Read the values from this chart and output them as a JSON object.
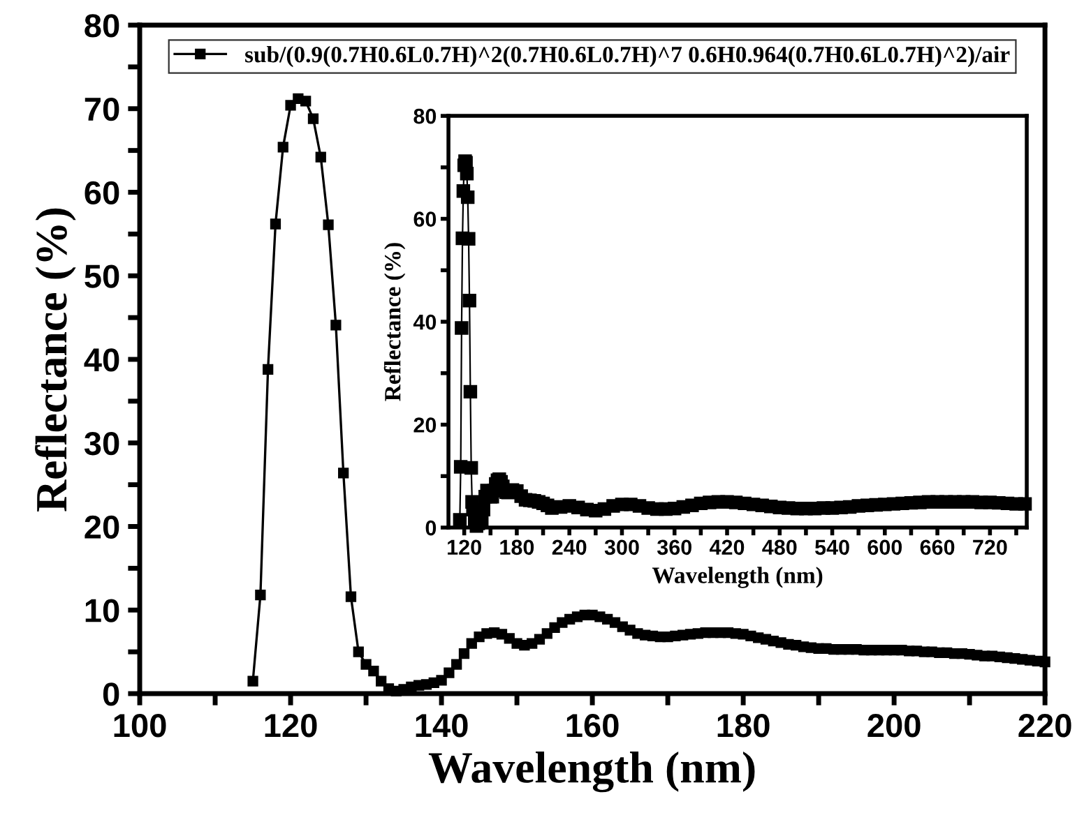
{
  "chart_data": [
    {
      "type": "line",
      "xlabel": "Wavelength (nm)",
      "ylabel": "Reflectance (%)",
      "marker": "square",
      "line_style": "solid",
      "legend": "top",
      "grid": false,
      "xlim": [
        100,
        220
      ],
      "xticks": [
        100,
        {
          "value": 110,
          "label": null
        },
        120,
        {
          "value": 130,
          "label": null
        },
        140,
        {
          "value": 150,
          "label": null
        },
        160,
        {
          "value": 170,
          "label": null
        },
        180,
        {
          "value": 190,
          "label": null
        },
        200,
        {
          "value": 210,
          "label": null
        },
        220
      ],
      "ylim": [
        0,
        80
      ],
      "yticks": [
        0,
        {
          "value": 5,
          "label": null
        },
        10,
        {
          "value": 15,
          "label": null
        },
        20,
        {
          "value": 25,
          "label": null
        },
        30,
        {
          "value": 35,
          "label": null
        },
        40,
        {
          "value": 45,
          "label": null
        },
        50,
        {
          "value": 55,
          "label": null
        },
        60,
        {
          "value": 65,
          "label": null
        },
        70,
        {
          "value": 75,
          "label": null
        },
        80
      ],
      "series": [
        {
          "name": "sub/(0.9(0.7H0.6L0.7H)^2(0.7H0.6L0.7H)^7 0.6H0.964(0.7H0.6L0.7H)^2)/air",
          "color": "#000000",
          "x": [
            115,
            116,
            117,
            118,
            119,
            120,
            121,
            122,
            123,
            124,
            125,
            126,
            127,
            128,
            129,
            130,
            131,
            132,
            133,
            134,
            135,
            136,
            137,
            138,
            139,
            140,
            141,
            142,
            143,
            144,
            145,
            146,
            147,
            148,
            149,
            150,
            151,
            152,
            153,
            154,
            155,
            156,
            157,
            158,
            159,
            160,
            161,
            162,
            163,
            164,
            165,
            166,
            167,
            168,
            169,
            170,
            171,
            172,
            173,
            174,
            175,
            176,
            177,
            178,
            179,
            180,
            181,
            182,
            183,
            184,
            185,
            186,
            187,
            188,
            189,
            190,
            191,
            192,
            193,
            194,
            195,
            196,
            197,
            198,
            199,
            200,
            201,
            202,
            203,
            204,
            205,
            206,
            207,
            208,
            209,
            210,
            211,
            212,
            213,
            214,
            215,
            216,
            217,
            218,
            219,
            220
          ],
          "values": [
            1.5,
            11.8,
            38.8,
            56.2,
            65.4,
            70.4,
            71.2,
            70.9,
            68.8,
            64.2,
            56.1,
            44.1,
            26.4,
            11.6,
            5.0,
            3.5,
            2.7,
            1.5,
            0.6,
            0.3,
            0.5,
            0.8,
            1.0,
            1.1,
            1.3,
            1.6,
            2.5,
            3.5,
            4.8,
            6.0,
            6.8,
            7.2,
            7.3,
            7.1,
            6.6,
            6.0,
            5.8,
            6.0,
            6.5,
            7.2,
            7.9,
            8.5,
            8.9,
            9.2,
            9.4,
            9.4,
            9.2,
            8.9,
            8.5,
            8.0,
            7.6,
            7.2,
            7.0,
            6.9,
            6.8,
            6.8,
            6.9,
            7.0,
            7.1,
            7.2,
            7.3,
            7.3,
            7.3,
            7.3,
            7.2,
            7.1,
            6.9,
            6.7,
            6.5,
            6.3,
            6.1,
            5.9,
            5.8,
            5.6,
            5.5,
            5.4,
            5.4,
            5.3,
            5.3,
            5.3,
            5.3,
            5.2,
            5.2,
            5.2,
            5.2,
            5.2,
            5.2,
            5.1,
            5.1,
            5.0,
            5.0,
            4.9,
            4.9,
            4.8,
            4.8,
            4.7,
            4.6,
            4.5,
            4.5,
            4.4,
            4.3,
            4.2,
            4.1,
            4.0,
            3.9,
            3.8
          ]
        }
      ]
    },
    {
      "type": "line",
      "xlabel": "Wavelength (nm)",
      "ylabel": "Reflectance (%)",
      "marker": "square",
      "line_style": "solid",
      "grid": false,
      "xlim": [
        102,
        762
      ],
      "xticks": [
        120,
        {
          "value": 150,
          "label": null
        },
        180,
        {
          "value": 210,
          "label": null
        },
        240,
        {
          "value": 270,
          "label": null
        },
        300,
        {
          "value": 330,
          "label": null
        },
        360,
        {
          "value": 390,
          "label": null
        },
        420,
        {
          "value": 450,
          "label": null
        },
        480,
        {
          "value": 510,
          "label": null
        },
        540,
        {
          "value": 570,
          "label": null
        },
        600,
        {
          "value": 630,
          "label": null
        },
        660,
        {
          "value": 690,
          "label": null
        },
        720,
        {
          "value": 750,
          "label": null
        }
      ],
      "ylim": [
        0,
        80
      ],
      "yticks": [
        0,
        {
          "value": 10,
          "label": null
        },
        20,
        {
          "value": 30,
          "label": null
        },
        40,
        {
          "value": 50,
          "label": null
        },
        60,
        {
          "value": 70,
          "label": null
        },
        80
      ],
      "series": [
        {
          "color": "#000000",
          "x": [
            115,
            116,
            117,
            118,
            119,
            120,
            121,
            122,
            123,
            124,
            125,
            126,
            127,
            128,
            129,
            130,
            132,
            134,
            136,
            138,
            140,
            142,
            144,
            146,
            148,
            150,
            152,
            154,
            156,
            158,
            160,
            162,
            164,
            166,
            168,
            170,
            175,
            180,
            185,
            190,
            195,
            200,
            205,
            210,
            215,
            220,
            230,
            240,
            250,
            260,
            270,
            280,
            290,
            300,
            310,
            320,
            330,
            340,
            350,
            360,
            370,
            380,
            390,
            400,
            410,
            420,
            430,
            440,
            450,
            460,
            470,
            480,
            490,
            500,
            510,
            520,
            530,
            540,
            550,
            560,
            570,
            580,
            590,
            600,
            610,
            620,
            630,
            640,
            650,
            660,
            670,
            680,
            690,
            700,
            710,
            720,
            730,
            740,
            750,
            760
          ],
          "values": [
            1.5,
            11.8,
            38.8,
            56.2,
            65.4,
            70.4,
            71.2,
            70.9,
            68.8,
            64.2,
            56.1,
            44.1,
            26.4,
            11.6,
            5.0,
            3.5,
            1.5,
            0.3,
            0.8,
            1.1,
            1.6,
            3.5,
            6.0,
            7.2,
            7.1,
            6.0,
            6.0,
            7.2,
            8.5,
            9.2,
            9.4,
            8.9,
            8.0,
            7.2,
            6.9,
            6.8,
            7.3,
            7.1,
            6.1,
            5.4,
            5.3,
            5.2,
            5.0,
            4.7,
            4.3,
            3.8,
            4.0,
            4.2,
            3.9,
            3.5,
            3.3,
            3.6,
            4.2,
            4.5,
            4.5,
            4.2,
            3.8,
            3.6,
            3.6,
            3.7,
            4.0,
            4.3,
            4.7,
            4.9,
            5.0,
            5.0,
            4.9,
            4.7,
            4.5,
            4.3,
            4.1,
            3.9,
            3.8,
            3.7,
            3.7,
            3.7,
            3.8,
            3.8,
            3.9,
            4.0,
            4.2,
            4.3,
            4.4,
            4.5,
            4.6,
            4.7,
            4.8,
            4.9,
            5.0,
            5.0,
            5.0,
            5.0,
            5.0,
            5.0,
            4.9,
            4.9,
            4.8,
            4.7,
            4.6,
            4.6
          ]
        }
      ]
    }
  ]
}
